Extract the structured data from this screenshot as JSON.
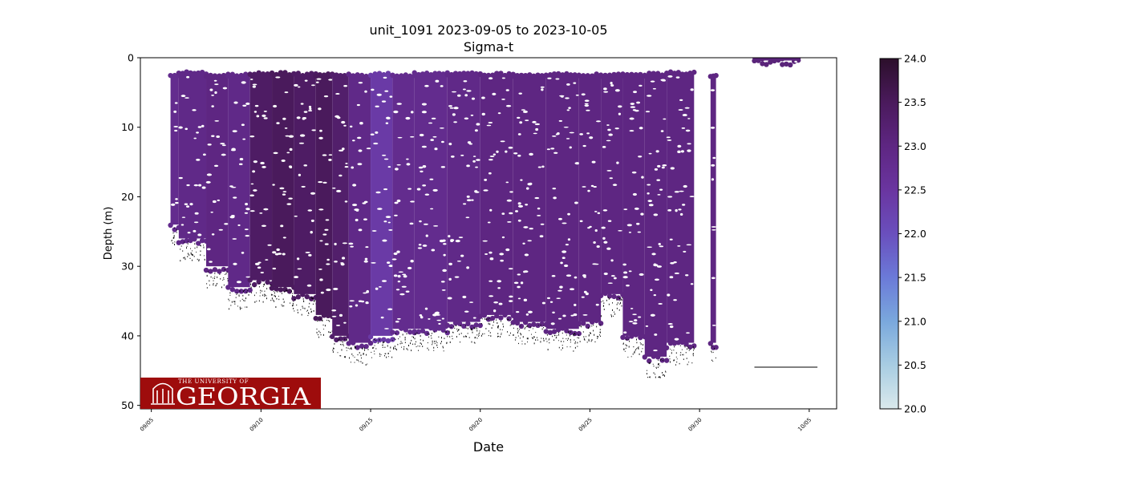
{
  "chart_data": {
    "type": "scatter",
    "title": "unit_1091 2023-09-05 to 2023-10-05",
    "subtitle": "Sigma-t",
    "xlabel": "Date",
    "ylabel": "Depth (m)",
    "xlim": [
      "2023-09-04T12:00",
      "2023-10-06T06:00"
    ],
    "ylim": [
      50.5,
      0
    ],
    "x_ticks": [
      {
        "date": "2023-09-05",
        "label": "09/05"
      },
      {
        "date": "2023-09-10",
        "label": "09/10"
      },
      {
        "date": "2023-09-15",
        "label": "09/15"
      },
      {
        "date": "2023-09-20",
        "label": "09/20"
      },
      {
        "date": "2023-09-25",
        "label": "09/25"
      },
      {
        "date": "2023-09-30",
        "label": "09/30"
      },
      {
        "date": "2023-10-05",
        "label": "10/05"
      }
    ],
    "y_ticks": [
      0,
      10,
      20,
      30,
      40,
      50
    ],
    "grid": false,
    "colorbar": {
      "min": 20.0,
      "max": 24.0,
      "ticks": [
        "20.0",
        "20.5",
        "21.0",
        "21.5",
        "22.0",
        "22.5",
        "23.0",
        "23.5",
        "24.0"
      ],
      "colors": [
        "#dae9ec",
        "#a8cde2",
        "#7aa8dd",
        "#6b7ad8",
        "#6a4fbd",
        "#6a35a0",
        "#5e2682",
        "#4a1a5c",
        "#2c0f2b"
      ]
    },
    "profiles": [
      {
        "start": "2023-09-05T21:00",
        "end": "2023-09-06T06:00",
        "top": 2.5,
        "bottom": 24,
        "sigma_t": 22.8
      },
      {
        "start": "2023-09-06T06:00",
        "end": "2023-09-07T12:00",
        "top": 2.2,
        "bottom": 26,
        "sigma_t": 22.9
      },
      {
        "start": "2023-09-07T12:00",
        "end": "2023-09-08T12:00",
        "top": 2.5,
        "bottom": 30,
        "sigma_t": 23.0
      },
      {
        "start": "2023-09-08T12:00",
        "end": "2023-09-09T12:00",
        "top": 2.5,
        "bottom": 33,
        "sigma_t": 22.9
      },
      {
        "start": "2023-09-09T12:00",
        "end": "2023-09-10T12:00",
        "top": 2.3,
        "bottom": 32,
        "sigma_t": 23.4
      },
      {
        "start": "2023-09-10T12:00",
        "end": "2023-09-11T12:00",
        "top": 2.3,
        "bottom": 33,
        "sigma_t": 23.5
      },
      {
        "start": "2023-09-11T12:00",
        "end": "2023-09-12T12:00",
        "top": 2.4,
        "bottom": 34,
        "sigma_t": 23.4
      },
      {
        "start": "2023-09-12T12:00",
        "end": "2023-09-13T06:00",
        "top": 2.5,
        "bottom": 37,
        "sigma_t": 23.5
      },
      {
        "start": "2023-09-13T06:00",
        "end": "2023-09-14T00:00",
        "top": 2.5,
        "bottom": 40,
        "sigma_t": 23.3
      },
      {
        "start": "2023-09-14T00:00",
        "end": "2023-09-15T00:00",
        "top": 2.5,
        "bottom": 41,
        "sigma_t": 22.9
      },
      {
        "start": "2023-09-15T00:00",
        "end": "2023-09-16T00:00",
        "top": 2.4,
        "bottom": 40,
        "sigma_t": 22.4
      },
      {
        "start": "2023-09-16T00:00",
        "end": "2023-09-17T00:00",
        "top": 2.5,
        "bottom": 39,
        "sigma_t": 22.8
      },
      {
        "start": "2023-09-17T00:00",
        "end": "2023-09-18T12:00",
        "top": 2.3,
        "bottom": 39,
        "sigma_t": 22.8
      },
      {
        "start": "2023-09-18T12:00",
        "end": "2023-09-20T00:00",
        "top": 2.3,
        "bottom": 38,
        "sigma_t": 22.9
      },
      {
        "start": "2023-09-20T00:00",
        "end": "2023-09-21T12:00",
        "top": 2.4,
        "bottom": 37,
        "sigma_t": 23.0
      },
      {
        "start": "2023-09-21T12:00",
        "end": "2023-09-23T00:00",
        "top": 2.5,
        "bottom": 38,
        "sigma_t": 23.0
      },
      {
        "start": "2023-09-23T00:00",
        "end": "2023-09-24T12:00",
        "top": 2.4,
        "bottom": 39,
        "sigma_t": 23.0
      },
      {
        "start": "2023-09-24T12:00",
        "end": "2023-09-25T12:00",
        "top": 2.5,
        "bottom": 38,
        "sigma_t": 23.0
      },
      {
        "start": "2023-09-25T12:00",
        "end": "2023-09-26T12:00",
        "top": 2.5,
        "bottom": 34,
        "sigma_t": 23.0
      },
      {
        "start": "2023-09-26T12:00",
        "end": "2023-09-27T12:00",
        "top": 2.5,
        "bottom": 40,
        "sigma_t": 23.0
      },
      {
        "start": "2023-09-27T12:00",
        "end": "2023-09-28T12:00",
        "top": 2.4,
        "bottom": 43,
        "sigma_t": 23.0
      },
      {
        "start": "2023-09-28T12:00",
        "end": "2023-09-29T18:00",
        "top": 2.2,
        "bottom": 41,
        "sigma_t": 23.0
      },
      {
        "start": "2023-09-30T12:00",
        "end": "2023-09-30T18:00",
        "top": 2.6,
        "bottom": 41,
        "sigma_t": 23.0
      },
      {
        "start": "2023-10-02T12:00",
        "end": "2023-10-04T12:00",
        "top": 0.0,
        "bottom": 0.4,
        "sigma_t": 23.1
      }
    ],
    "annotations": [
      {
        "type": "hline",
        "depth": 44.5,
        "x_start": "2023-10-02T12:00",
        "x_end": "2023-10-05T09:00"
      }
    ]
  },
  "logo": {
    "line1": "THE UNIVERSITY OF",
    "line2": "GEORGIA"
  }
}
